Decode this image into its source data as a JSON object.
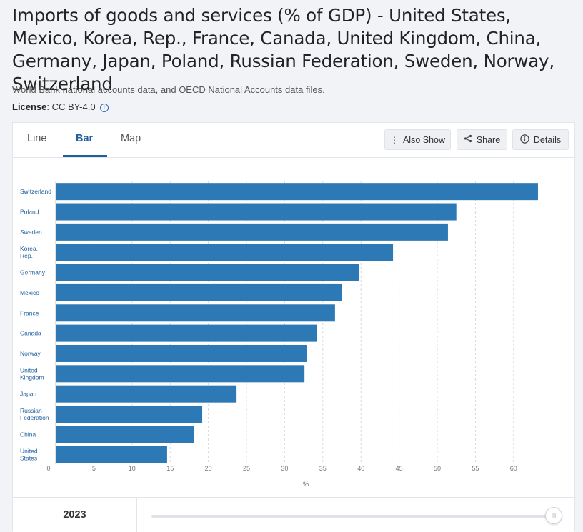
{
  "header": {
    "title": "Imports of goods and services (% of GDP) - United States, Mexico, Korea, Rep., France, Canada, United Kingdom, China, Germany, Japan, Poland, Russian Federation, Sweden, Norway, Switzerland",
    "source": "World Bank national accounts data, and OECD National Accounts data files.",
    "license_label": "License",
    "license_value": ": CC BY-4.0"
  },
  "tabs": [
    {
      "label": "Line"
    },
    {
      "label": "Bar"
    },
    {
      "label": "Map"
    }
  ],
  "toolbar": {
    "also_show": "Also Show",
    "share": "Share",
    "details": "Details"
  },
  "footer": {
    "year": "2023"
  },
  "colors": {
    "bar": "#2d79b5",
    "accent": "#1f5f9e"
  },
  "chart_data": {
    "type": "bar",
    "orientation": "horizontal",
    "categories": [
      [
        "Switzerland"
      ],
      [
        "Poland"
      ],
      [
        "Sweden"
      ],
      [
        "Korea,",
        "Rep."
      ],
      [
        "Germany"
      ],
      [
        "Mexico"
      ],
      [
        "France"
      ],
      [
        "Canada"
      ],
      [
        "Norway"
      ],
      [
        "United",
        "Kingdom"
      ],
      [
        "Japan"
      ],
      [
        "Russian",
        "Federation"
      ],
      [
        "China"
      ],
      [
        "United",
        "States"
      ]
    ],
    "values": [
      63.2,
      52.5,
      51.4,
      44.2,
      39.7,
      37.5,
      36.6,
      34.2,
      32.9,
      32.6,
      23.7,
      19.2,
      18.1,
      14.6
    ],
    "xlabel": "%",
    "xlim": [
      0,
      65
    ],
    "xticks": [
      0,
      5,
      10,
      15,
      20,
      25,
      30,
      35,
      40,
      45,
      50,
      55,
      60
    ],
    "grid": "vertical dashed"
  }
}
